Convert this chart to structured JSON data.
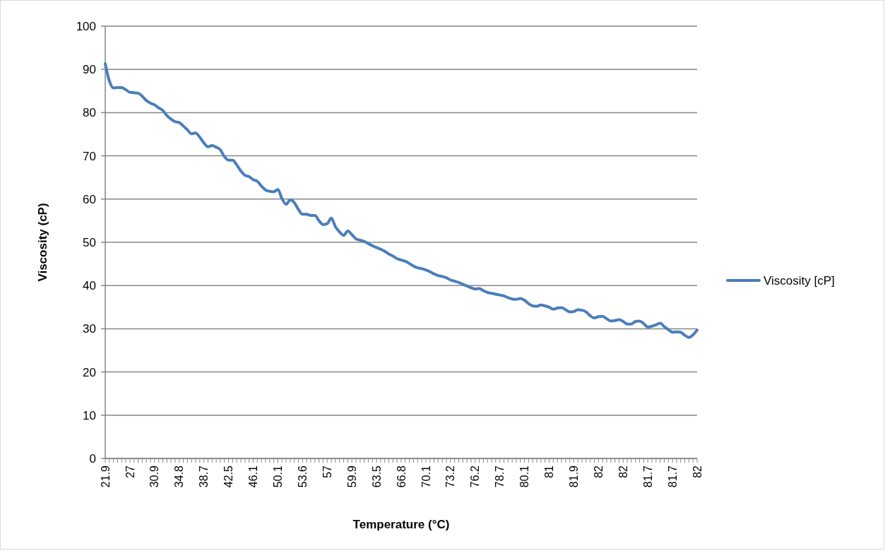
{
  "chart_data": {
    "type": "line",
    "xlabel": "Temperature (°C)",
    "ylabel": "Viscosity (cP)",
    "categories": [
      "21.9",
      null,
      null,
      null,
      null,
      null,
      "27",
      null,
      null,
      null,
      null,
      null,
      "30.9",
      null,
      null,
      null,
      null,
      null,
      "34.8",
      null,
      null,
      null,
      null,
      null,
      "38.7",
      null,
      null,
      null,
      null,
      null,
      "42.5",
      null,
      null,
      null,
      null,
      null,
      "46.1",
      null,
      null,
      null,
      null,
      null,
      "50.1",
      null,
      null,
      null,
      null,
      null,
      "53.6",
      null,
      null,
      null,
      null,
      null,
      "57",
      null,
      null,
      null,
      null,
      null,
      "59.9",
      null,
      null,
      null,
      null,
      null,
      "63.5",
      null,
      null,
      null,
      null,
      null,
      "66.8",
      null,
      null,
      null,
      null,
      null,
      "70.1",
      null,
      null,
      null,
      null,
      null,
      "73.2",
      null,
      null,
      null,
      null,
      null,
      "76.2",
      null,
      null,
      null,
      null,
      null,
      "78.7",
      null,
      null,
      null,
      null,
      null,
      "80.1",
      null,
      null,
      null,
      null,
      null,
      "81",
      null,
      null,
      null,
      null,
      null,
      "81.9",
      null,
      null,
      null,
      null,
      null,
      "82",
      null,
      null,
      null,
      null,
      null,
      "82",
      null,
      null,
      null,
      null,
      null,
      "81.7",
      null,
      null,
      null,
      null,
      null,
      "81.7",
      null,
      null,
      null,
      null,
      null,
      "82"
    ],
    "series": [
      {
        "name": "Viscosity [cP]",
        "color": "#4a7ebb",
        "values": [
          91.3,
          87.3,
          85.7,
          85.8,
          85.8,
          85.3,
          84.7,
          84.6,
          84.5,
          83.8,
          82.8,
          82.2,
          81.8,
          81.1,
          80.5,
          79.3,
          78.5,
          77.9,
          77.7,
          76.9,
          76.0,
          75.1,
          75.3,
          74.3,
          73.0,
          72.1,
          72.4,
          72.0,
          71.4,
          69.8,
          69.0,
          69.0,
          67.9,
          66.5,
          65.5,
          65.2,
          64.5,
          64.1,
          63.0,
          62.1,
          61.8,
          61.7,
          62.2,
          60.1,
          58.8,
          59.8,
          59.2,
          57.6,
          56.5,
          56.5,
          56.2,
          56.2,
          55.0,
          54.1,
          54.3,
          55.6,
          53.6,
          52.4,
          51.6,
          52.6,
          51.8,
          50.8,
          50.5,
          50.2,
          49.7,
          49.2,
          48.8,
          48.4,
          47.9,
          47.3,
          46.8,
          46.2,
          45.9,
          45.6,
          45.1,
          44.5,
          44.1,
          43.9,
          43.6,
          43.2,
          42.7,
          42.3,
          42.1,
          41.8,
          41.3,
          41.0,
          40.7,
          40.3,
          39.9,
          39.5,
          39.2,
          39.3,
          38.8,
          38.4,
          38.2,
          38.0,
          37.8,
          37.6,
          37.2,
          36.9,
          36.8,
          37.0,
          36.6,
          35.8,
          35.3,
          35.2,
          35.5,
          35.3,
          35.0,
          34.5,
          34.8,
          34.9,
          34.4,
          33.9,
          34.0,
          34.4,
          34.3,
          33.9,
          33.0,
          32.5,
          32.8,
          32.9,
          32.3,
          31.8,
          31.9,
          32.1,
          31.7,
          31.1,
          31.1,
          31.7,
          31.8,
          31.2,
          30.4,
          30.6,
          30.9,
          31.3,
          30.5,
          29.8,
          29.2,
          29.3,
          29.2,
          28.5,
          28.0,
          28.6,
          29.7
        ]
      }
    ],
    "ylim": [
      0,
      100
    ],
    "yticks": [
      0,
      10,
      20,
      30,
      40,
      50,
      60,
      70,
      80,
      90,
      100
    ],
    "grid": "y",
    "legend": "right",
    "marker": "none",
    "line_style": "solid"
  }
}
